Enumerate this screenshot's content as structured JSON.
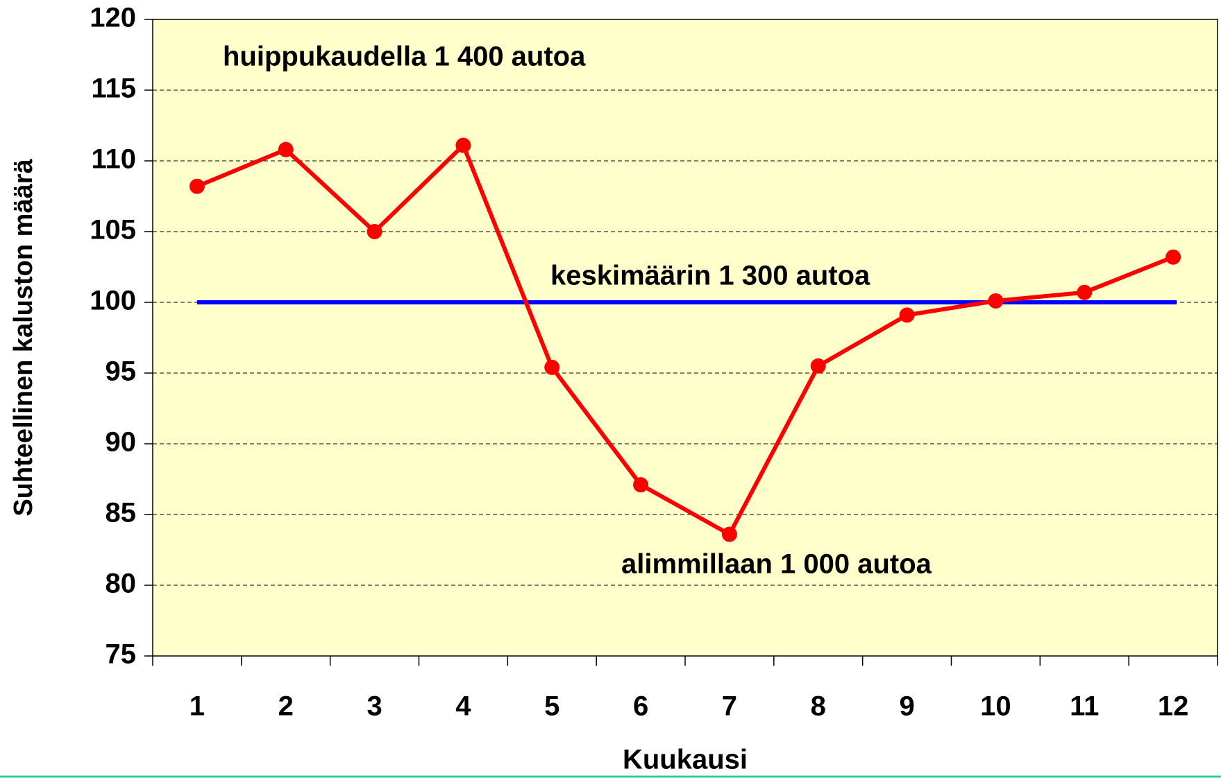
{
  "chart_data": {
    "type": "line",
    "x_label": "Kuukausi",
    "y_label": "Suhteellinen kaluston määrä",
    "categories": [
      "1",
      "2",
      "3",
      "4",
      "5",
      "6",
      "7",
      "8",
      "9",
      "10",
      "11",
      "12"
    ],
    "series": [
      {
        "color": "#ff0000",
        "values": [
          108.2,
          110.8,
          105.0,
          111.1,
          95.4,
          87.1,
          83.6,
          95.5,
          99.1,
          100.1,
          100.7,
          103.2
        ]
      }
    ],
    "reference_lines": [
      {
        "value": 100,
        "color": "#0000ff"
      }
    ],
    "annotations": [
      "huippukaudella 1 400 autoa",
      "keskimäärin 1 300 autoa",
      "alimmillaan 1 000 autoa"
    ],
    "ylim": [
      75,
      120
    ],
    "yticks": [
      75,
      80,
      85,
      90,
      95,
      100,
      105,
      110,
      115,
      120
    ],
    "grid": true,
    "plot_background": "#ffffcc"
  }
}
